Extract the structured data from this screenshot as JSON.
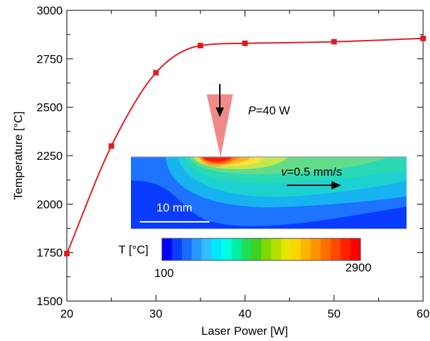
{
  "chart_data": {
    "type": "line",
    "xlabel": "Laser Power [W]",
    "ylabel": "Temperature [°C]",
    "xlim": [
      20,
      60
    ],
    "ylim": [
      1500,
      3000
    ],
    "x_ticks": [
      20,
      30,
      40,
      50,
      60
    ],
    "y_ticks": [
      1500,
      1750,
      2000,
      2250,
      2500,
      2750,
      3000
    ],
    "grid": false,
    "series": [
      {
        "color": "#e31a1c",
        "x": [
          20,
          25,
          30,
          35,
          40,
          50,
          60
        ],
        "y": [
          1745,
          2300,
          2678,
          2818,
          2830,
          2838,
          2855
        ]
      }
    ]
  },
  "inset": {
    "power_label_italic": "P",
    "power_label_rest": "=40 W",
    "velocity_label_italic": "v",
    "velocity_label_rest": "=0.5 mm/s",
    "scale_bar_label": "10 mm",
    "colorbar_title": "T [°C]",
    "colorbar_min": "100",
    "colorbar_max": "2900",
    "colorbar_colors": [
      "#0000ff",
      "#0a3cff",
      "#1a6bff",
      "#2a98ff",
      "#2fc0ff",
      "#00e6ff",
      "#00ffe0",
      "#00f0a8",
      "#1ee058",
      "#40d020",
      "#7fd800",
      "#b4e000",
      "#e6e600",
      "#ffd400",
      "#ffb400",
      "#ff9400",
      "#ff7000",
      "#ff4800",
      "#ff2000",
      "#ff0000"
    ]
  }
}
